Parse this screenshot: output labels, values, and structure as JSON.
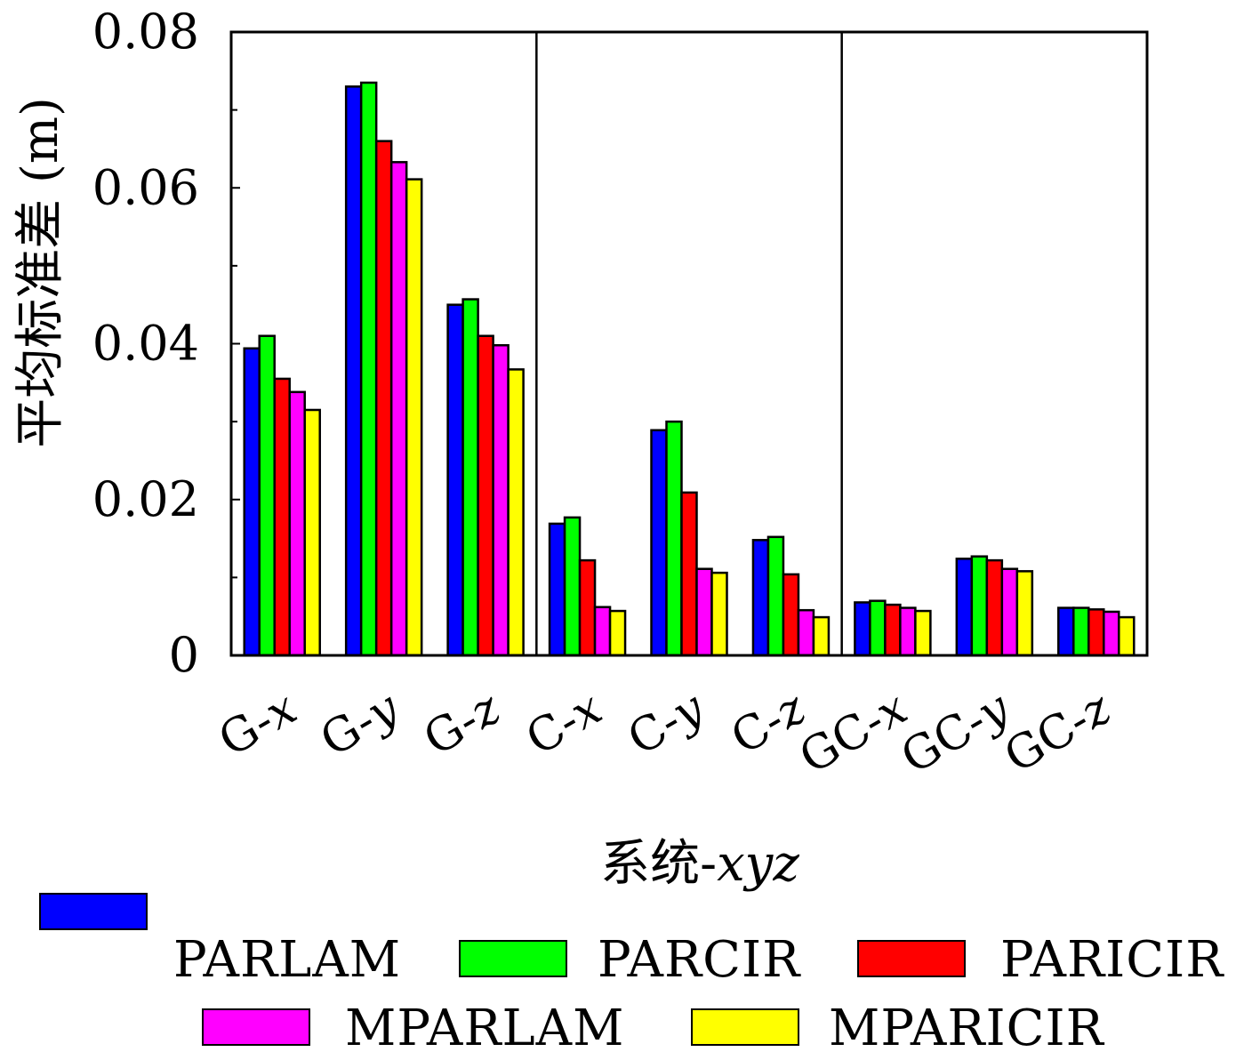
{
  "chart_data": {
    "type": "bar",
    "ylabel": "平均标准差 (m)",
    "xlabel_prefix": "系统-",
    "xlabel_var": "xyz",
    "ylim": [
      0,
      0.08
    ],
    "yticks": [
      0,
      0.02,
      0.04,
      0.06,
      0.08
    ],
    "ytick_labels": [
      "0",
      "0.02",
      "0.04",
      "0.06",
      "0.08"
    ],
    "grid": false,
    "legend_position": "bottom",
    "categories": [
      {
        "prefix": "G-",
        "var": "x"
      },
      {
        "prefix": "G-",
        "var": "y"
      },
      {
        "prefix": "G-",
        "var": "z"
      },
      {
        "prefix": "C-",
        "var": "x"
      },
      {
        "prefix": "C-",
        "var": "y"
      },
      {
        "prefix": "C-",
        "var": "z"
      },
      {
        "prefix": "GC-",
        "var": "x"
      },
      {
        "prefix": "GC-",
        "var": "y"
      },
      {
        "prefix": "GC-",
        "var": "z"
      }
    ],
    "series": [
      {
        "name": "PARLAM",
        "color": "#0000ff",
        "values": [
          0.0394,
          0.073,
          0.045,
          0.0169,
          0.0289,
          0.0148,
          0.0068,
          0.0124,
          0.0061
        ]
      },
      {
        "name": "PARCIR",
        "color": "#00ff00",
        "values": [
          0.041,
          0.0735,
          0.0457,
          0.0177,
          0.03,
          0.0152,
          0.007,
          0.0127,
          0.0061
        ]
      },
      {
        "name": "PARICIR",
        "color": "#ff0000",
        "values": [
          0.0355,
          0.066,
          0.041,
          0.0122,
          0.0209,
          0.0104,
          0.0065,
          0.0122,
          0.0059
        ]
      },
      {
        "name": "MPARLAM",
        "color": "#ff00ff",
        "values": [
          0.0338,
          0.0633,
          0.0398,
          0.0062,
          0.0111,
          0.0058,
          0.0061,
          0.0111,
          0.0056
        ]
      },
      {
        "name": "MPARICIR",
        "color": "#ffff00",
        "values": [
          0.0315,
          0.0611,
          0.0367,
          0.0057,
          0.0106,
          0.0049,
          0.0057,
          0.0108,
          0.0049
        ]
      }
    ]
  }
}
